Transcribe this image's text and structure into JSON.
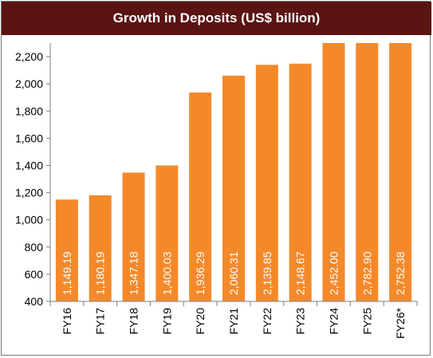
{
  "chart_data": {
    "type": "bar",
    "title": "Growth in Deposits (US$ billion)",
    "categories": [
      "FY16",
      "FY17",
      "FY18",
      "FY19",
      "FY20",
      "FY21",
      "FY22",
      "FY23",
      "FY24",
      "FY25",
      "FY26*"
    ],
    "values": [
      1149.19,
      1180.19,
      1347.18,
      1400.03,
      1936.29,
      2060.31,
      2139.85,
      2148.67,
      2452.0,
      2782.9,
      2752.38
    ],
    "value_labels": [
      "1,149.19",
      "1,180.19",
      "1,347.18",
      "1,400.03",
      "1,936.29",
      "2,060.31",
      "2,139.85",
      "2,148.67",
      "2,452.00",
      "2,782.90",
      "2,752.38"
    ],
    "ylim": [
      400,
      2300
    ],
    "yticks": [
      400,
      600,
      800,
      1000,
      1200,
      1400,
      1600,
      1800,
      2000,
      2200
    ],
    "ytick_labels": [
      "400",
      "600",
      "800",
      "1,000",
      "1,200",
      "1,400",
      "1,600",
      "1,800",
      "2,000",
      "2,200"
    ],
    "xlabel": "",
    "ylabel": "",
    "grid": false,
    "legend": "none",
    "colors": {
      "bar": "#f4892a",
      "title_background": "#5a1414",
      "title_text": "#ffffff",
      "data_label": "#ffffff",
      "axis": "#7f7f7f"
    }
  }
}
